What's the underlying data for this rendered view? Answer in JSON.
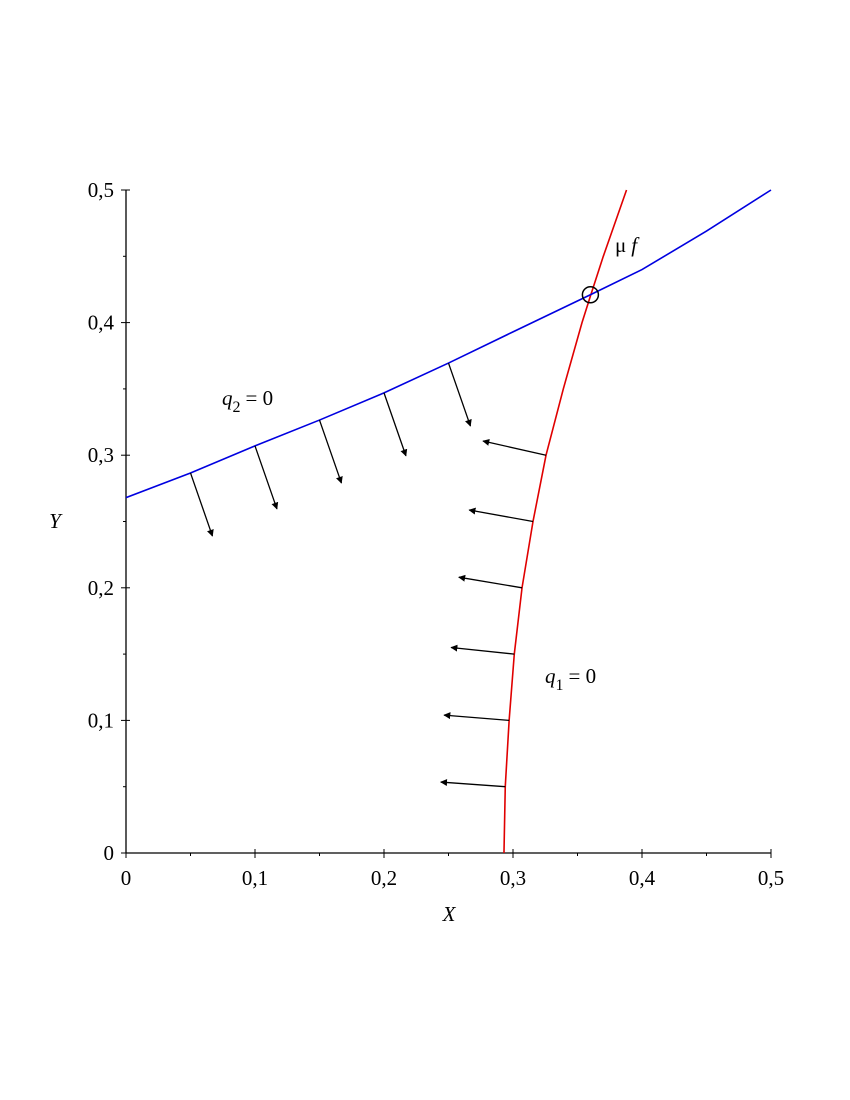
{
  "chart_data": {
    "type": "line",
    "xlabel": "X",
    "ylabel": "Y",
    "xlim": [
      0,
      0.5
    ],
    "ylim": [
      0,
      0.5
    ],
    "xticks": [
      0,
      {
        "value": 0.1,
        "label": "0,1"
      },
      {
        "value": 0.2,
        "label": "0,2"
      },
      {
        "value": 0.3,
        "label": "0,3"
      },
      {
        "value": 0.4,
        "label": "0,4"
      },
      {
        "value": 0.5,
        "label": "0,5"
      }
    ],
    "yticks": [
      0,
      {
        "value": 0.1,
        "label": "0,1"
      },
      {
        "value": 0.2,
        "label": "0,2"
      },
      {
        "value": 0.3,
        "label": "0,3"
      },
      {
        "value": 0.4,
        "label": "0,4"
      },
      {
        "value": 0.5,
        "label": "0,5"
      }
    ],
    "xminorticks": [
      0.05,
      0.15,
      0.25,
      0.35,
      0.45
    ],
    "yminorticks": [
      0.05,
      0.15,
      0.25,
      0.35,
      0.45
    ],
    "series": [
      {
        "color": "#e00000",
        "x": [
          0.293,
          0.294,
          0.297,
          0.301,
          0.307,
          0.3155,
          0.3256,
          0.339,
          0.3535,
          0.36,
          0.37,
          0.388
        ],
        "y": [
          0,
          0.05,
          0.1,
          0.15,
          0.2,
          0.25,
          0.3,
          0.35,
          0.4,
          0.42,
          0.45,
          0.5
        ]
      },
      {
        "color": "#0000e0",
        "x": [
          0,
          0.05,
          0.1,
          0.15,
          0.2,
          0.25,
          0.3,
          0.36,
          0.4,
          0.45,
          0.5
        ],
        "y": [
          0.268,
          0.2866,
          0.307,
          0.3265,
          0.347,
          0.3695,
          0.393,
          0.421,
          0.44,
          0.469,
          0.5
        ]
      }
    ],
    "arrows": [
      {
        "x": [
          0.05,
          0.067
        ],
        "y": [
          0.2866,
          0.239
        ]
      },
      {
        "x": [
          0.1,
          0.117
        ],
        "y": [
          0.307,
          0.2595
        ]
      },
      {
        "x": [
          0.15,
          0.167
        ],
        "y": [
          0.3265,
          0.279
        ]
      },
      {
        "x": [
          0.2,
          0.217
        ],
        "y": [
          0.347,
          0.2995
        ]
      },
      {
        "x": [
          0.25,
          0.267
        ],
        "y": [
          0.3695,
          0.322
        ]
      },
      {
        "x": [
          0.3256,
          0.2767
        ],
        "y": [
          0.3,
          0.3107
        ]
      },
      {
        "x": [
          0.3155,
          0.266
        ],
        "y": [
          0.25,
          0.2587
        ]
      },
      {
        "x": [
          0.307,
          0.258
        ],
        "y": [
          0.2,
          0.208
        ]
      },
      {
        "x": [
          0.301,
          0.252
        ],
        "y": [
          0.15,
          0.155
        ]
      },
      {
        "x": [
          0.297,
          0.2465
        ],
        "y": [
          0.1,
          0.104
        ]
      },
      {
        "x": [
          0.294,
          0.244
        ],
        "y": [
          0.05,
          0.0535
        ]
      }
    ],
    "point": {
      "x": 0.36,
      "y": 0.421,
      "label": [
        "μ",
        "f"
      ]
    },
    "annotations": [
      {
        "base": "q",
        "sub": "2",
        "tail": "= 0"
      },
      {
        "base": "q",
        "sub": "1",
        "tail": "= 0"
      }
    ]
  }
}
